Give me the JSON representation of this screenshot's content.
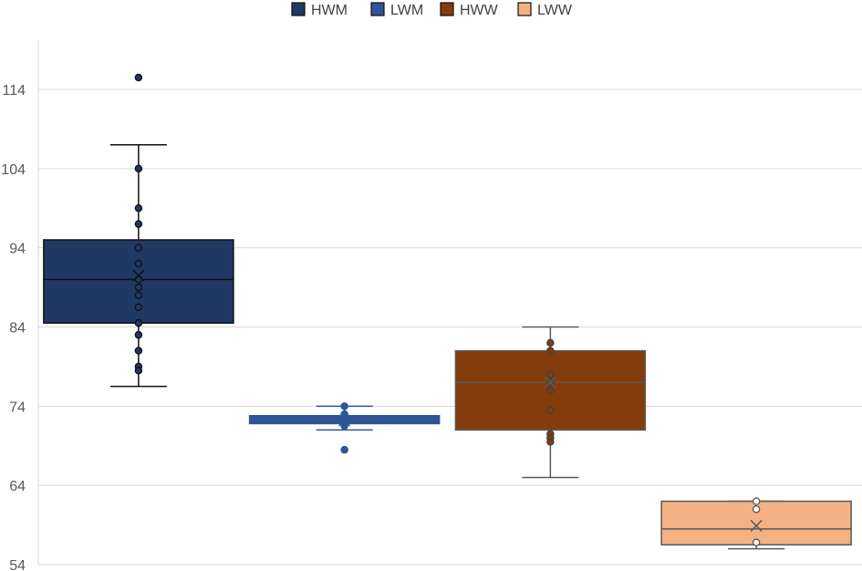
{
  "chart_data": {
    "type": "box",
    "title": "",
    "xlabel": "",
    "ylabel": "",
    "ylim": [
      54,
      118
    ],
    "yticks": [
      54,
      64,
      74,
      84,
      94,
      104,
      114
    ],
    "grid": true,
    "legend_position": "top",
    "legend": [
      "HWM",
      "LWM",
      "HWW",
      "LWW"
    ],
    "series": [
      {
        "name": "HWM",
        "color": "#203864",
        "edge_color": "#111111",
        "whisker_color": "#111111",
        "point_fill": "#203864",
        "point_edge": "#111111",
        "min": 76.5,
        "q1": 84.5,
        "median": 90,
        "q3": 95,
        "max": 107,
        "mean": 90.5,
        "points": [
          115.5,
          104,
          99,
          97,
          94,
          92,
          90,
          89,
          88,
          86.5,
          84.5,
          83,
          81,
          79,
          78.5
        ]
      },
      {
        "name": "LWM",
        "color": "#2F5597",
        "edge_color": "#2F5597",
        "whisker_color": "#2F5597",
        "point_fill": "#2F5597",
        "point_edge": "#2F5597",
        "min": 71,
        "q1": 71.8,
        "median": 72.3,
        "q3": 72.8,
        "max": 74,
        "mean": 72.2,
        "points": [
          74,
          73,
          72,
          71.5,
          68.5
        ]
      },
      {
        "name": "HWW",
        "color": "#843C0C",
        "edge_color": "#595959",
        "whisker_color": "#595959",
        "point_fill": "#843C0C",
        "point_edge": "#404040",
        "min": 65,
        "q1": 71,
        "median": 77,
        "q3": 81,
        "max": 84,
        "mean": 77,
        "points": [
          82,
          81,
          78,
          77,
          76,
          73.5,
          70.5,
          70,
          69.5
        ]
      },
      {
        "name": "LWW",
        "color": "#F4B183",
        "edge_color": "#595959",
        "whisker_color": "#595959",
        "point_fill": "#ffffff",
        "point_edge": "#595959",
        "min": 56,
        "q1": 56.5,
        "median": 58.5,
        "q3": 62,
        "max": 62,
        "mean": 58.9,
        "points": [
          62,
          61,
          56.8
        ]
      }
    ]
  }
}
